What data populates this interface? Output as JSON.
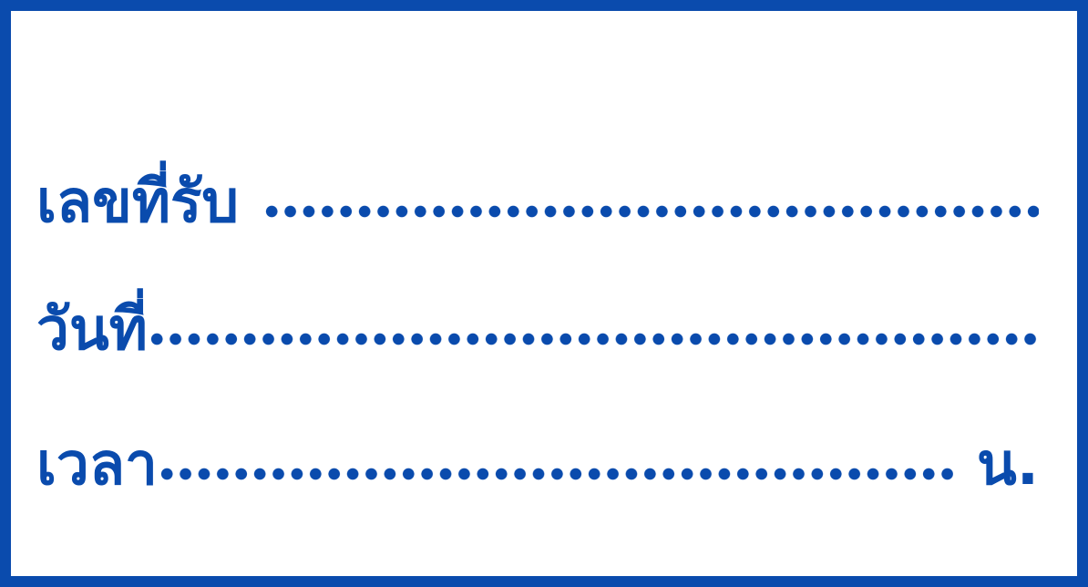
{
  "form": {
    "receipt_no_label": "เลขที่รับ",
    "date_label": "วันที่",
    "time_label": "เวลา",
    "time_unit": "น."
  },
  "colors": {
    "ink": "#0a4bad",
    "paper": "#ffffff"
  }
}
